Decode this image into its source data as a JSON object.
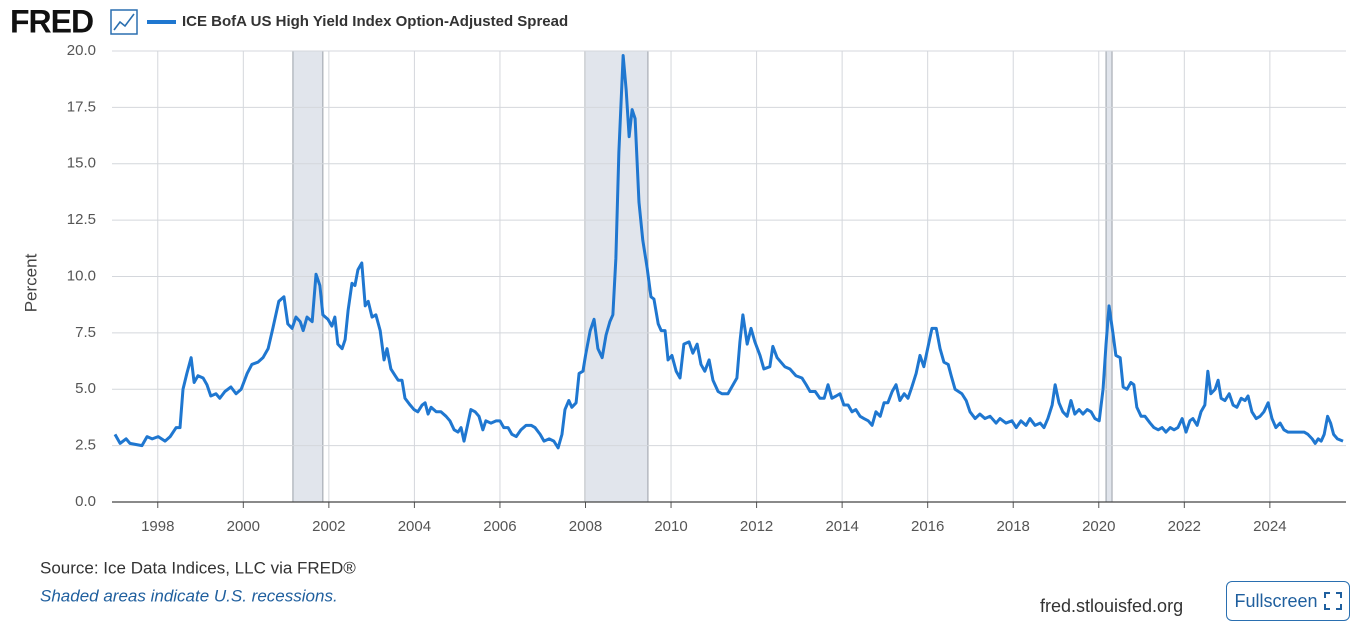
{
  "logo": "FRED",
  "chart_data": {
    "type": "line",
    "series": [
      {
        "name": "ICE BofA US High Yield Index Option-Adjusted Spread",
        "color": "#1f77d0",
        "values": [
          3.0,
          2.6,
          2.8,
          2.6,
          2.5,
          2.9,
          2.8,
          2.9,
          2.7,
          2.9,
          3.3,
          3.3,
          5.0,
          5.7,
          6.4,
          5.3,
          5.6,
          5.5,
          5.2,
          4.7,
          4.8,
          4.6,
          4.9,
          5.1,
          4.8,
          5.0,
          5.7,
          6.1,
          6.2,
          6.4,
          6.8,
          7.7,
          8.9,
          9.1,
          7.9,
          7.7,
          8.2,
          8.0,
          7.6,
          8.2,
          8.0,
          10.1,
          9.6,
          8.3,
          8.1,
          7.8,
          8.2,
          7.0,
          6.8,
          7.2,
          8.5,
          9.7,
          9.6,
          10.3,
          10.6,
          8.7,
          8.9,
          8.2,
          8.3,
          7.6,
          6.3,
          6.8,
          5.9,
          5.6,
          5.4,
          5.4,
          4.6,
          4.3,
          4.1,
          4.0,
          4.3,
          4.4,
          3.9,
          4.2,
          4.0,
          4.0,
          3.8,
          3.6,
          3.2,
          3.1,
          3.3,
          2.7,
          3.3,
          4.1,
          4.0,
          3.8,
          3.2,
          3.6,
          3.5,
          3.6,
          3.6,
          3.3,
          3.3,
          3.0,
          2.9,
          3.2,
          3.4,
          3.4,
          3.3,
          3.0,
          2.7,
          2.8,
          2.7,
          2.4,
          3.0,
          4.1,
          4.5,
          4.2,
          4.4,
          5.7,
          5.8,
          6.6,
          7.6,
          8.1,
          6.8,
          6.4,
          7.4,
          8.0,
          8.3,
          10.8,
          15.5,
          19.8,
          18.3,
          16.2,
          17.4,
          17.0,
          13.3,
          11.6,
          10.4,
          9.1,
          9.0,
          7.9,
          7.6,
          7.6,
          6.3,
          6.5,
          5.8,
          5.5,
          7.0,
          7.1,
          6.6,
          7.0,
          6.1,
          5.8,
          6.3,
          5.4,
          4.9,
          4.8,
          4.8,
          5.2,
          5.5,
          7.1,
          8.3,
          7.0,
          7.7,
          7.1,
          6.5,
          5.9,
          6.0,
          6.9,
          6.4,
          6.2,
          6.0,
          5.9,
          5.6,
          5.5,
          5.2,
          4.9,
          4.9,
          4.6,
          4.6,
          5.2,
          4.6,
          4.7,
          4.8,
          4.3,
          4.3,
          4.0,
          4.1,
          3.8,
          3.7,
          3.6,
          3.4,
          4.0,
          3.8,
          4.4,
          4.4,
          4.9,
          5.2,
          4.5,
          4.8,
          4.6,
          5.1,
          5.7,
          6.5,
          6.0,
          6.9,
          7.7,
          7.7,
          6.8,
          6.2,
          6.1,
          5.6,
          5.0,
          4.8,
          4.5,
          4.0,
          3.7,
          3.9,
          3.7,
          3.8,
          3.5,
          3.7,
          3.5,
          3.6,
          3.3,
          3.6,
          3.4,
          3.7,
          3.4,
          3.5,
          3.3,
          3.7,
          4.3,
          5.2,
          4.4,
          4.0,
          3.8,
          4.5,
          3.9,
          4.1,
          3.9,
          4.1,
          4.0,
          3.7,
          3.6,
          5.0,
          7.0,
          8.7,
          7.5,
          6.5,
          6.4,
          5.1,
          5.0,
          5.3,
          5.2,
          4.2,
          3.8,
          3.8,
          3.5,
          3.3,
          3.2,
          3.3,
          3.1,
          3.3,
          3.2,
          3.3,
          3.7,
          3.1,
          3.6,
          3.7,
          3.4,
          4.0,
          4.3,
          5.8,
          4.8,
          5.0,
          5.4,
          4.6,
          4.5,
          4.8,
          4.3,
          4.2,
          4.6,
          4.5,
          4.7,
          4.0,
          3.7,
          3.8,
          4.0,
          4.4,
          3.7,
          3.3,
          3.5,
          3.2,
          3.1,
          3.1,
          3.1,
          3.0,
          2.8,
          2.6,
          2.8,
          2.7,
          3.0,
          3.8,
          3.5,
          3.0,
          2.8,
          2.7
        ]
      }
    ],
    "x": [
      1997.0,
      1997.12,
      1997.26,
      1997.35,
      1997.63,
      1997.75,
      1997.87,
      1998.01,
      1998.17,
      1998.29,
      1998.43,
      1998.52,
      1998.59,
      1998.68,
      1998.78,
      1998.85,
      1998.94,
      1999.06,
      1999.15,
      1999.24,
      1999.36,
      1999.45,
      1999.57,
      1999.71,
      1999.83,
      1999.95,
      2000.09,
      2000.2,
      2000.34,
      2000.46,
      2000.58,
      2000.69,
      2000.83,
      2000.95,
      2001.04,
      2001.14,
      2001.23,
      2001.33,
      2001.4,
      2001.49,
      2001.61,
      2001.7,
      2001.79,
      2001.86,
      2001.98,
      2002.07,
      2002.14,
      2002.21,
      2002.31,
      2002.38,
      2002.45,
      2002.54,
      2002.61,
      2002.68,
      2002.77,
      2002.85,
      2002.92,
      2003.01,
      2003.1,
      2003.2,
      2003.29,
      2003.36,
      2003.45,
      2003.55,
      2003.62,
      2003.71,
      2003.78,
      2003.9,
      2003.99,
      2004.08,
      2004.18,
      2004.25,
      2004.32,
      2004.39,
      2004.51,
      2004.62,
      2004.74,
      2004.83,
      2004.93,
      2005.02,
      2005.09,
      2005.16,
      2005.23,
      2005.32,
      2005.42,
      2005.51,
      2005.6,
      2005.67,
      2005.79,
      2005.91,
      2006.0,
      2006.09,
      2006.19,
      2006.28,
      2006.38,
      2006.49,
      2006.61,
      2006.73,
      2006.82,
      2006.94,
      2007.03,
      2007.15,
      2007.26,
      2007.36,
      2007.45,
      2007.52,
      2007.61,
      2007.68,
      2007.78,
      2007.85,
      2007.94,
      2008.01,
      2008.11,
      2008.2,
      2008.29,
      2008.39,
      2008.48,
      2008.57,
      2008.64,
      2008.71,
      2008.78,
      2008.88,
      2008.95,
      2009.02,
      2009.09,
      2009.16,
      2009.25,
      2009.34,
      2009.44,
      2009.53,
      2009.6,
      2009.7,
      2009.77,
      2009.86,
      2009.93,
      2010.02,
      2010.12,
      2010.21,
      2010.3,
      2010.42,
      2010.51,
      2010.61,
      2010.7,
      2010.79,
      2010.89,
      2010.98,
      2011.1,
      2011.19,
      2011.33,
      2011.45,
      2011.54,
      2011.61,
      2011.68,
      2011.78,
      2011.87,
      2011.96,
      2012.08,
      2012.17,
      2012.31,
      2012.38,
      2012.48,
      2012.57,
      2012.66,
      2012.78,
      2012.92,
      2013.06,
      2013.16,
      2013.25,
      2013.37,
      2013.48,
      2013.58,
      2013.67,
      2013.76,
      2013.86,
      2013.95,
      2014.04,
      2014.14,
      2014.23,
      2014.32,
      2014.42,
      2014.51,
      2014.61,
      2014.7,
      2014.79,
      2014.89,
      2014.98,
      2015.07,
      2015.17,
      2015.26,
      2015.35,
      2015.45,
      2015.54,
      2015.63,
      2015.73,
      2015.82,
      2015.91,
      2016.01,
      2016.1,
      2016.2,
      2016.29,
      2016.38,
      2016.48,
      2016.55,
      2016.64,
      2016.8,
      2016.9,
      2016.99,
      2017.11,
      2017.22,
      2017.34,
      2017.46,
      2017.6,
      2017.69,
      2017.83,
      2017.97,
      2018.07,
      2018.18,
      2018.3,
      2018.39,
      2018.51,
      2018.63,
      2018.72,
      2018.81,
      2018.91,
      2018.98,
      2019.07,
      2019.16,
      2019.26,
      2019.35,
      2019.44,
      2019.54,
      2019.63,
      2019.73,
      2019.82,
      2019.91,
      2020.01,
      2020.1,
      2020.17,
      2020.24,
      2020.33,
      2020.4,
      2020.5,
      2020.57,
      2020.66,
      2020.75,
      2020.82,
      2020.89,
      2020.99,
      2021.08,
      2021.2,
      2021.29,
      2021.39,
      2021.48,
      2021.57,
      2021.67,
      2021.76,
      2021.85,
      2021.95,
      2022.04,
      2022.13,
      2022.2,
      2022.3,
      2022.39,
      2022.48,
      2022.55,
      2022.62,
      2022.72,
      2022.79,
      2022.86,
      2022.95,
      2023.05,
      2023.14,
      2023.23,
      2023.33,
      2023.42,
      2023.49,
      2023.58,
      2023.68,
      2023.77,
      2023.86,
      2023.96,
      2024.05,
      2024.14,
      2024.24,
      2024.33,
      2024.42,
      2024.61,
      2024.8,
      2024.89,
      2024.99,
      2025.06,
      2025.13,
      2025.2,
      2025.27,
      2025.35,
      2025.42,
      2025.49,
      2025.58,
      2025.71
    ],
    "recessions": [
      [
        2001.16,
        2001.86
      ],
      [
        2007.99,
        2009.46
      ],
      [
        2020.17,
        2020.31
      ]
    ],
    "recession_color": "#e1e5ec",
    "ylabel": "Percent",
    "xlim": [
      1996.93,
      2025.78
    ],
    "ylim": [
      0,
      20
    ],
    "xticks": [
      1998,
      2000,
      2002,
      2004,
      2006,
      2008,
      2010,
      2012,
      2014,
      2016,
      2018,
      2020,
      2022,
      2024
    ],
    "yticks": [
      {
        "value": 0,
        "label": "0.0"
      },
      {
        "value": 2.5,
        "label": "2.5"
      },
      {
        "value": 5,
        "label": "5.0"
      },
      {
        "value": 7.5,
        "label": "7.5"
      },
      {
        "value": 10,
        "label": "10.0"
      },
      {
        "value": 12.5,
        "label": "12.5"
      },
      {
        "value": 15,
        "label": "15.0"
      },
      {
        "value": 17.5,
        "label": "17.5"
      },
      {
        "value": 20,
        "label": "20.0"
      }
    ],
    "grid": true
  },
  "footer": {
    "source": "Source: Ice Data Indices, LLC via FRED®",
    "note": "Shaded areas indicate U.S. recessions.",
    "site": "fred.stlouisfed.org",
    "button": "Fullscreen"
  }
}
